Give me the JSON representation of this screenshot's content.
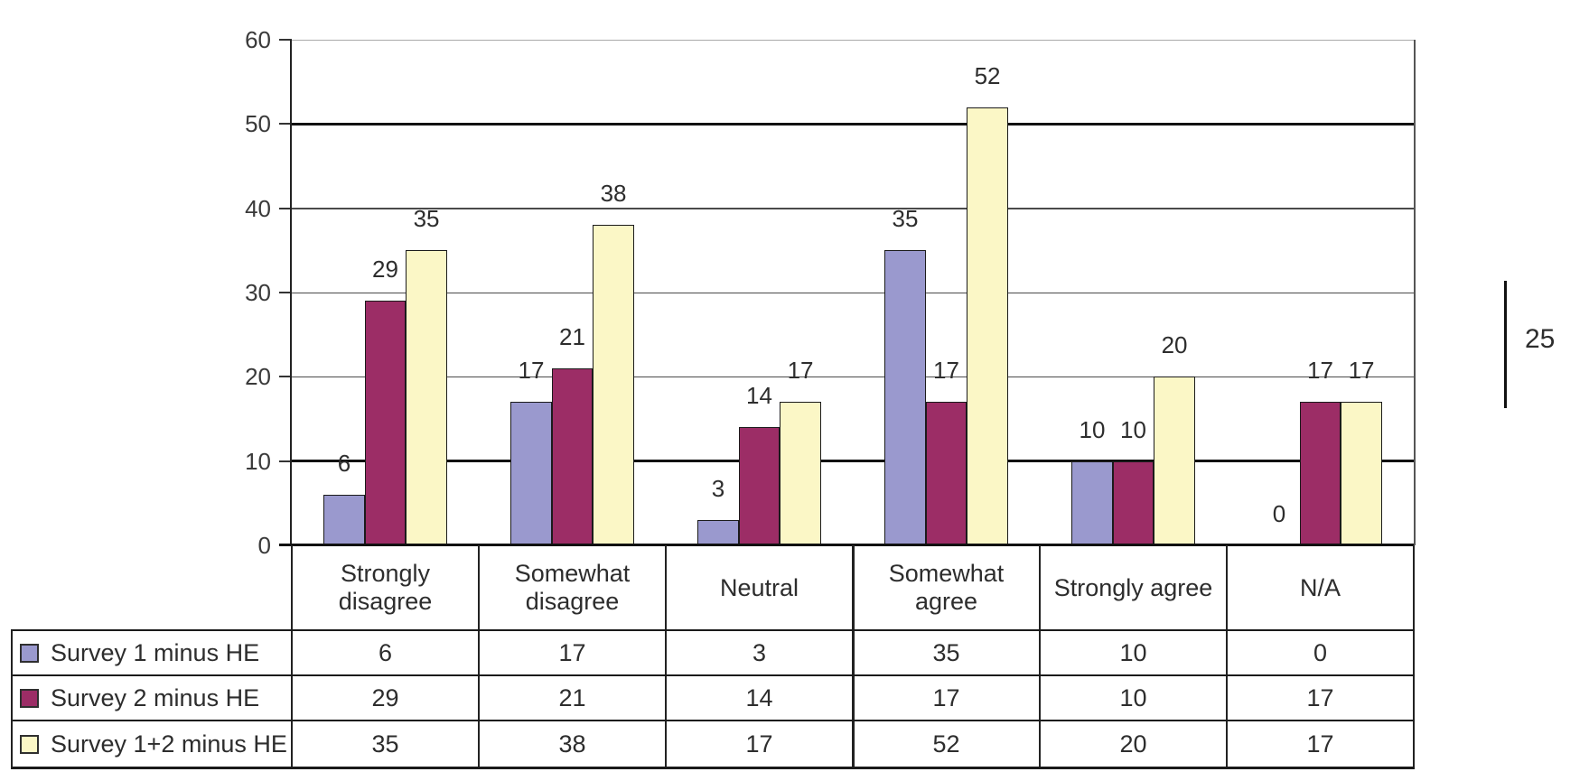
{
  "chart_data": {
    "type": "bar",
    "title": "",
    "categories": [
      "Strongly\ndisagree",
      "Somewhat\ndisagree",
      "Neutral",
      "Somewhat\nagree",
      "Strongly agree",
      "N/A"
    ],
    "series": [
      {
        "name": "Survey 1 minus HE",
        "color": "#9A99CE",
        "values": [
          6,
          17,
          3,
          35,
          10,
          0
        ]
      },
      {
        "name": "Survey 2 minus HE",
        "color": "#9C2D66",
        "values": [
          29,
          21,
          14,
          17,
          10,
          17
        ]
      },
      {
        "name": "Survey 1+2 minus HE",
        "color": "#FBF7C6",
        "values": [
          35,
          38,
          17,
          52,
          20,
          17
        ]
      }
    ],
    "ylim": [
      0,
      60
    ],
    "ytick_step": 10,
    "y_tick_labels": [
      "0",
      "10",
      "20",
      "30",
      "40",
      "50",
      "60"
    ],
    "grid": true,
    "thick_gridline_values": [
      10,
      50
    ],
    "data_labels": true,
    "legend_position": "table-left",
    "annotation": {
      "label": "25"
    }
  }
}
